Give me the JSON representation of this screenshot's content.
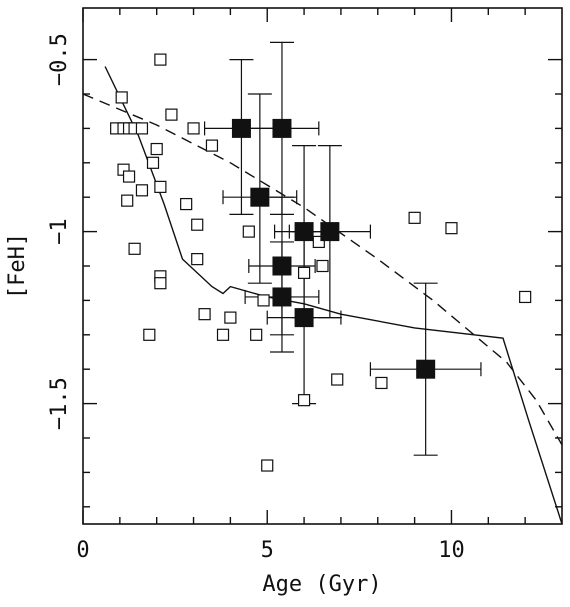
{
  "chart_data": {
    "type": "scatter",
    "xlabel": "Age (Gyr)",
    "ylabel": "[FeH]",
    "xlim": [
      0,
      13
    ],
    "ylim": [
      -1.85,
      -0.35
    ],
    "x_ticks": [
      0,
      5,
      10
    ],
    "x_tick_labels": [
      "0",
      "5",
      "10"
    ],
    "x_minor_ticks": [
      1,
      2,
      3,
      4,
      6,
      7,
      8,
      9,
      11,
      12
    ],
    "y_ticks": [
      -0.5,
      -1,
      -1.5
    ],
    "y_tick_labels": [
      "−0.5",
      "−1",
      "−1.5"
    ],
    "y_minor_ticks": [
      -0.6,
      -0.7,
      -0.8,
      -0.9,
      -1.1,
      -1.2,
      -1.3,
      -1.4,
      -1.6,
      -1.7,
      -1.8
    ],
    "grid": false,
    "series": [
      {
        "marker": "open-square",
        "points": [
          [
            0.9,
            -0.7
          ],
          [
            1.1,
            -0.7
          ],
          [
            1.25,
            -0.7
          ],
          [
            1.4,
            -0.7
          ],
          [
            1.6,
            -0.7
          ],
          [
            1.05,
            -0.61
          ],
          [
            2.1,
            -0.5
          ],
          [
            2.4,
            -0.66
          ],
          [
            3.0,
            -0.7
          ],
          [
            3.5,
            -0.75
          ],
          [
            2.0,
            -0.76
          ],
          [
            1.9,
            -0.8
          ],
          [
            1.1,
            -0.82
          ],
          [
            1.25,
            -0.84
          ],
          [
            1.6,
            -0.88
          ],
          [
            2.1,
            -0.87
          ],
          [
            1.2,
            -0.91
          ],
          [
            2.8,
            -0.92
          ],
          [
            3.1,
            -0.98
          ],
          [
            4.5,
            -1.0
          ],
          [
            1.4,
            -1.05
          ],
          [
            3.1,
            -1.08
          ],
          [
            2.1,
            -1.13
          ],
          [
            2.1,
            -1.15
          ],
          [
            3.3,
            -1.24
          ],
          [
            4.0,
            -1.25
          ],
          [
            4.9,
            -1.2
          ],
          [
            3.8,
            -1.3
          ],
          [
            1.8,
            -1.3
          ],
          [
            4.7,
            -1.3
          ],
          [
            6.0,
            -1.12
          ],
          [
            6.5,
            -1.1
          ],
          [
            6.4,
            -1.03
          ],
          [
            6.0,
            -1.49
          ],
          [
            6.9,
            -1.43
          ],
          [
            8.1,
            -1.44
          ],
          [
            9.0,
            -0.96
          ],
          [
            10.0,
            -0.99
          ],
          [
            12.0,
            -1.19
          ],
          [
            5.0,
            -1.68
          ]
        ]
      },
      {
        "marker": "filled-square",
        "points": [
          {
            "x": 4.3,
            "y": -0.7,
            "xerr": [
              1.0,
              1.0
            ],
            "yerr": [
              0.25,
              0.2
            ]
          },
          {
            "x": 5.4,
            "y": -0.7,
            "xerr": [
              1.0,
              1.0
            ],
            "yerr": [
              0.25,
              0.25
            ]
          },
          {
            "x": 4.8,
            "y": -0.9,
            "xerr": [
              1.0,
              1.0
            ],
            "yerr": [
              0.25,
              0.3
            ]
          },
          {
            "x": 6.0,
            "y": -1.0,
            "xerr": [
              0.8,
              0.8
            ],
            "yerr": [
              0.25,
              0.25
            ]
          },
          {
            "x": 6.7,
            "y": -1.0,
            "xerr": [
              1.1,
              1.1
            ],
            "yerr": [
              0.25,
              0.25
            ]
          },
          {
            "x": 5.4,
            "y": -1.1,
            "xerr": [
              0.9,
              0.9
            ],
            "yerr": [
              0.2,
              0.2
            ]
          },
          {
            "x": 5.4,
            "y": -1.19,
            "xerr": [
              1.0,
              1.0
            ],
            "yerr": [
              0.16,
              0.16
            ]
          },
          {
            "x": 6.0,
            "y": -1.25,
            "xerr": [
              1.0,
              1.0
            ],
            "yerr": [
              0.25,
              0.25
            ]
          },
          {
            "x": 9.3,
            "y": -1.4,
            "xerr": [
              1.5,
              1.5
            ],
            "yerr": [
              0.25,
              0.25
            ]
          }
        ]
      },
      {
        "style": "solid-line",
        "points": [
          [
            0.6,
            -0.52
          ],
          [
            1.5,
            -0.72
          ],
          [
            2.2,
            -0.92
          ],
          [
            2.7,
            -1.08
          ],
          [
            3.5,
            -1.16
          ],
          [
            3.8,
            -1.18
          ],
          [
            4.0,
            -1.16
          ],
          [
            5.0,
            -1.19
          ],
          [
            6.0,
            -1.21
          ],
          [
            7.0,
            -1.24
          ],
          [
            9.0,
            -1.28
          ],
          [
            11.4,
            -1.31
          ],
          [
            12.1,
            -1.55
          ],
          [
            13.0,
            -1.85
          ]
        ]
      },
      {
        "style": "dashed-line",
        "points": [
          [
            0.0,
            -0.6
          ],
          [
            2.0,
            -0.69
          ],
          [
            4.0,
            -0.8
          ],
          [
            6.0,
            -0.93
          ],
          [
            8.0,
            -1.08
          ],
          [
            9.5,
            -1.2
          ],
          [
            10.5,
            -1.29
          ],
          [
            11.5,
            -1.38
          ],
          [
            12.3,
            -1.49
          ],
          [
            13.0,
            -1.62
          ]
        ]
      }
    ]
  }
}
